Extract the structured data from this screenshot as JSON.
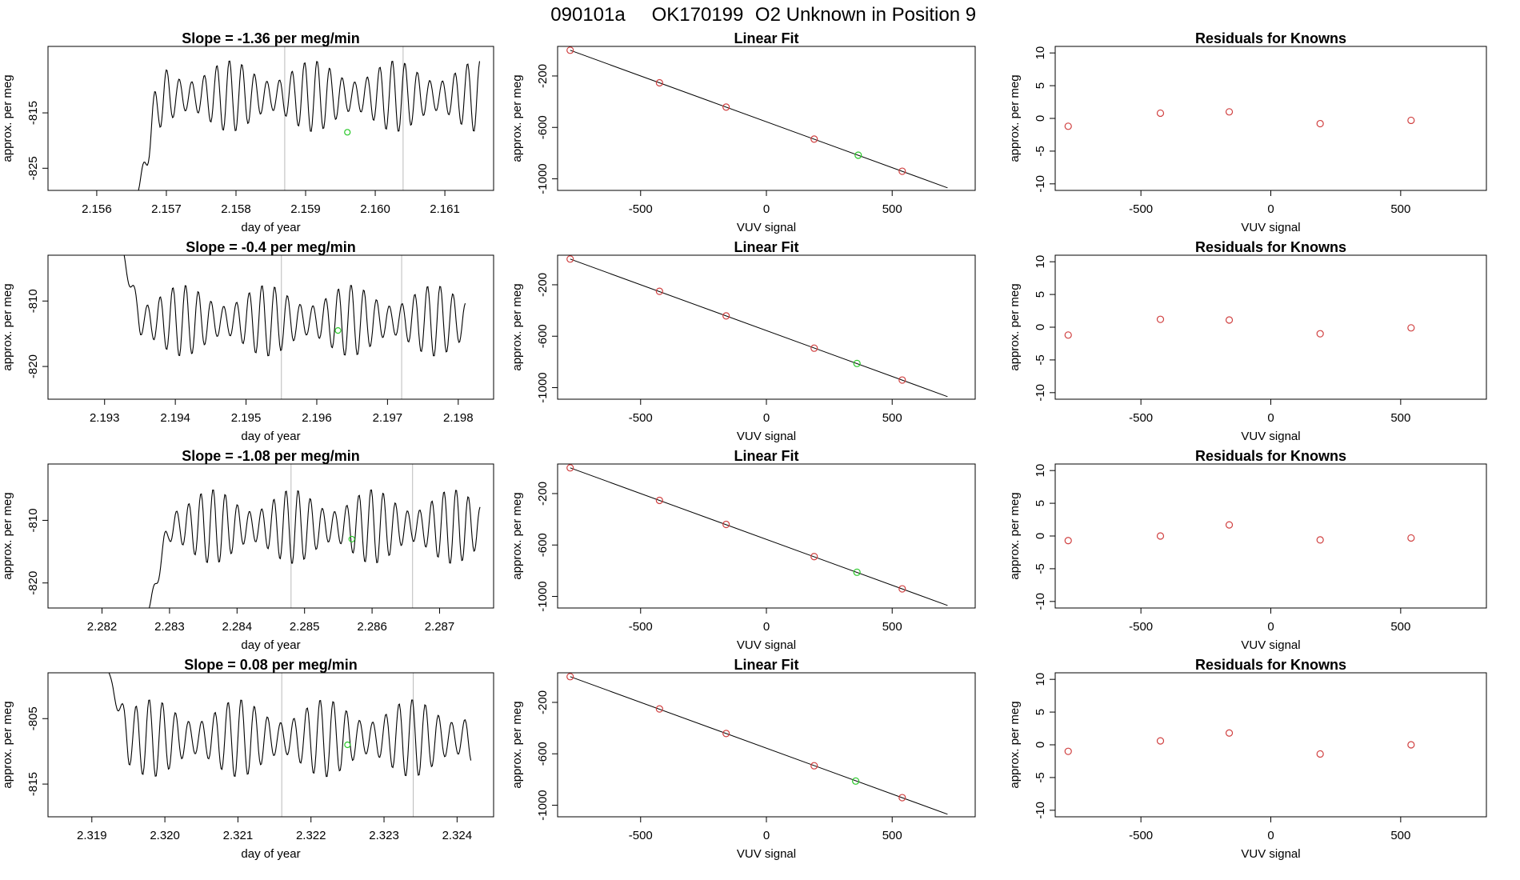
{
  "figure_title": {
    "run": "090101a",
    "tank": "OK170199",
    "desc": "O2 Unknown in Position  9"
  },
  "colors": {
    "known": "#d04040",
    "unknown": "#28c828",
    "line": "#000000",
    "vline": "#bbbbbb"
  },
  "chart_data": [
    {
      "type": "line",
      "name": "timeseries-1",
      "title": "Slope =  -1.36  per meg/min",
      "xlabel": "day of year",
      "ylabel": "approx. per meg",
      "xlim": [
        2.1553,
        2.1617
      ],
      "ylim": [
        -829,
        -803
      ],
      "xticks": [
        "2.156",
        "2.157",
        "2.158",
        "2.159",
        "2.160",
        "2.161"
      ],
      "yticks": [
        "-825",
        "-815"
      ],
      "t_start": 2.1566,
      "t_end": 2.1615,
      "trace_start": 2.1566,
      "trace_end": 2.1615,
      "start_level": -829,
      "mean_level": -812,
      "amplitude": 6.5,
      "period": 0.00018,
      "vlines": [
        2.1587,
        2.1604
      ],
      "green_point": {
        "x": 2.1596,
        "y": -818.5
      }
    },
    {
      "type": "scatter",
      "name": "linearfit-1",
      "title": "Linear Fit",
      "xlabel": "VUV signal",
      "ylabel": "approx. per meg",
      "xlim": [
        -830,
        830
      ],
      "ylim": [
        -1090,
        30
      ],
      "xticks": [
        "-500",
        "0",
        "500"
      ],
      "yticks": [
        "-200",
        "-600",
        "-1000"
      ],
      "fit_line": {
        "x": [
          -780,
          720
        ],
        "y": [
          0,
          -1070
        ]
      },
      "knowns": [
        {
          "x": -780,
          "y": 0
        },
        {
          "x": -425,
          "y": -253
        },
        {
          "x": -160,
          "y": -442
        },
        {
          "x": 190,
          "y": -691
        },
        {
          "x": 540,
          "y": -941
        }
      ],
      "unknown": {
        "x": 365,
        "y": -816
      }
    },
    {
      "type": "scatter",
      "name": "residuals-1",
      "title": "Residuals for Knowns",
      "xlabel": "VUV signal",
      "ylabel": "approx. per meg",
      "xlim": [
        -830,
        830
      ],
      "ylim": [
        -11,
        11
      ],
      "xticks": [
        "-500",
        "0",
        "500"
      ],
      "yticks": [
        "10",
        "5",
        "0",
        "-5",
        "-10"
      ],
      "points": [
        {
          "x": -780,
          "y": -1.2
        },
        {
          "x": -425,
          "y": 0.8
        },
        {
          "x": -160,
          "y": 1.0
        },
        {
          "x": 190,
          "y": -0.8
        },
        {
          "x": 540,
          "y": -0.3
        }
      ]
    },
    {
      "type": "line",
      "name": "timeseries-2",
      "title": "Slope =  -0.4  per meg/min",
      "xlabel": "day of year",
      "ylabel": "approx. per meg",
      "xlim": [
        2.1922,
        2.1985
      ],
      "ylim": [
        -825,
        -803
      ],
      "xticks": [
        "2.193",
        "2.194",
        "2.195",
        "2.196",
        "2.197",
        "2.198"
      ],
      "yticks": [
        "-810",
        "-820"
      ],
      "t_start": 2.1932,
      "t_end": 2.1981,
      "trace_start": 2.1932,
      "trace_end": 2.1981,
      "start_level": -800,
      "mean_level": -813,
      "amplitude": 5.5,
      "period": 0.00018,
      "vlines": [
        2.1955,
        2.1972
      ],
      "green_point": {
        "x": 2.1963,
        "y": -814.5
      }
    },
    {
      "type": "scatter",
      "name": "linearfit-2",
      "title": "Linear Fit",
      "xlabel": "VUV signal",
      "ylabel": "approx. per meg",
      "xlim": [
        -830,
        830
      ],
      "ylim": [
        -1090,
        30
      ],
      "xticks": [
        "-500",
        "0",
        "500"
      ],
      "yticks": [
        "-200",
        "-600",
        "-1000"
      ],
      "fit_line": {
        "x": [
          -780,
          720
        ],
        "y": [
          0,
          -1070
        ]
      },
      "knowns": [
        {
          "x": -780,
          "y": 0
        },
        {
          "x": -425,
          "y": -251
        },
        {
          "x": -160,
          "y": -442
        },
        {
          "x": 190,
          "y": -693
        },
        {
          "x": 540,
          "y": -941
        }
      ],
      "unknown": {
        "x": 360,
        "y": -812
      }
    },
    {
      "type": "scatter",
      "name": "residuals-2",
      "title": "Residuals for Knowns",
      "xlabel": "VUV signal",
      "ylabel": "approx. per meg",
      "xlim": [
        -830,
        830
      ],
      "ylim": [
        -11,
        11
      ],
      "xticks": [
        "-500",
        "0",
        "500"
      ],
      "yticks": [
        "10",
        "5",
        "0",
        "-5",
        "-10"
      ],
      "points": [
        {
          "x": -780,
          "y": -1.2
        },
        {
          "x": -425,
          "y": 1.2
        },
        {
          "x": -160,
          "y": 1.1
        },
        {
          "x": 190,
          "y": -1.0
        },
        {
          "x": 540,
          "y": -0.1
        }
      ]
    },
    {
      "type": "line",
      "name": "timeseries-3",
      "title": "Slope =  -1.08  per meg/min",
      "xlabel": "day of year",
      "ylabel": "approx. per meg",
      "xlim": [
        2.2812,
        2.2878
      ],
      "ylim": [
        -824,
        -801
      ],
      "xticks": [
        "2.282",
        "2.283",
        "2.284",
        "2.285",
        "2.286",
        "2.287"
      ],
      "yticks": [
        "-810",
        "-820"
      ],
      "t_start": 2.2827,
      "t_end": 2.2876,
      "trace_start": 2.2827,
      "trace_end": 2.2876,
      "start_level": -824,
      "mean_level": -811,
      "amplitude": 6,
      "period": 0.00018,
      "vlines": [
        2.2848,
        2.2866
      ],
      "green_point": {
        "x": 2.2857,
        "y": -813
      }
    },
    {
      "type": "scatter",
      "name": "linearfit-3",
      "title": "Linear Fit",
      "xlabel": "VUV signal",
      "ylabel": "approx. per meg",
      "xlim": [
        -830,
        830
      ],
      "ylim": [
        -1090,
        30
      ],
      "xticks": [
        "-500",
        "0",
        "500"
      ],
      "yticks": [
        "-200",
        "-600",
        "-1000"
      ],
      "fit_line": {
        "x": [
          -780,
          720
        ],
        "y": [
          0,
          -1070
        ]
      },
      "knowns": [
        {
          "x": -780,
          "y": 0
        },
        {
          "x": -425,
          "y": -253
        },
        {
          "x": -160,
          "y": -440
        },
        {
          "x": 190,
          "y": -690
        },
        {
          "x": 540,
          "y": -941
        }
      ],
      "unknown": {
        "x": 360,
        "y": -812
      }
    },
    {
      "type": "scatter",
      "name": "residuals-3",
      "title": "Residuals for Knowns",
      "xlabel": "VUV signal",
      "ylabel": "approx. per meg",
      "xlim": [
        -830,
        830
      ],
      "ylim": [
        -11,
        11
      ],
      "xticks": [
        "-500",
        "0",
        "500"
      ],
      "yticks": [
        "10",
        "5",
        "0",
        "-5",
        "-10"
      ],
      "points": [
        {
          "x": -780,
          "y": -0.7
        },
        {
          "x": -425,
          "y": 0
        },
        {
          "x": -160,
          "y": 1.7
        },
        {
          "x": 190,
          "y": -0.6
        },
        {
          "x": 540,
          "y": -0.3
        }
      ]
    },
    {
      "type": "line",
      "name": "timeseries-4",
      "title": "Slope =  0.08  per meg/min",
      "xlabel": "day of year",
      "ylabel": "approx. per meg",
      "xlim": [
        2.3184,
        2.3245
      ],
      "ylim": [
        -820,
        -798
      ],
      "xticks": [
        "2.319",
        "2.320",
        "2.321",
        "2.322",
        "2.323",
        "2.324"
      ],
      "yticks": [
        "-805",
        "-815"
      ],
      "t_start": 2.3192,
      "t_end": 2.3242,
      "trace_start": 2.3192,
      "trace_end": 2.3242,
      "start_level": -797,
      "mean_level": -808,
      "amplitude": 6,
      "period": 0.00018,
      "vlines": [
        2.3216,
        2.3234
      ],
      "green_point": {
        "x": 2.3225,
        "y": -809
      }
    },
    {
      "type": "scatter",
      "name": "linearfit-4",
      "title": "Linear Fit",
      "xlabel": "VUV signal",
      "ylabel": "approx. per meg",
      "xlim": [
        -830,
        830
      ],
      "ylim": [
        -1090,
        30
      ],
      "xticks": [
        "-500",
        "0",
        "500"
      ],
      "yticks": [
        "-200",
        "-600",
        "-1000"
      ],
      "fit_line": {
        "x": [
          -780,
          720
        ],
        "y": [
          0,
          -1070
        ]
      },
      "knowns": [
        {
          "x": -780,
          "y": 0
        },
        {
          "x": -425,
          "y": -251
        },
        {
          "x": -160,
          "y": -442
        },
        {
          "x": 190,
          "y": -693
        },
        {
          "x": 540,
          "y": -941
        }
      ],
      "unknown": {
        "x": 355,
        "y": -812
      }
    },
    {
      "type": "scatter",
      "name": "residuals-4",
      "title": "Residuals for Knowns",
      "xlabel": "VUV signal",
      "ylabel": "approx. per meg",
      "xlim": [
        -830,
        830
      ],
      "ylim": [
        -11,
        11
      ],
      "xticks": [
        "-500",
        "0",
        "500"
      ],
      "yticks": [
        "10",
        "5",
        "0",
        "-5",
        "-10"
      ],
      "points": [
        {
          "x": -780,
          "y": -1.0
        },
        {
          "x": -425,
          "y": 0.6
        },
        {
          "x": -160,
          "y": 1.8
        },
        {
          "x": 190,
          "y": -1.4
        },
        {
          "x": 540,
          "y": 0
        }
      ]
    }
  ]
}
